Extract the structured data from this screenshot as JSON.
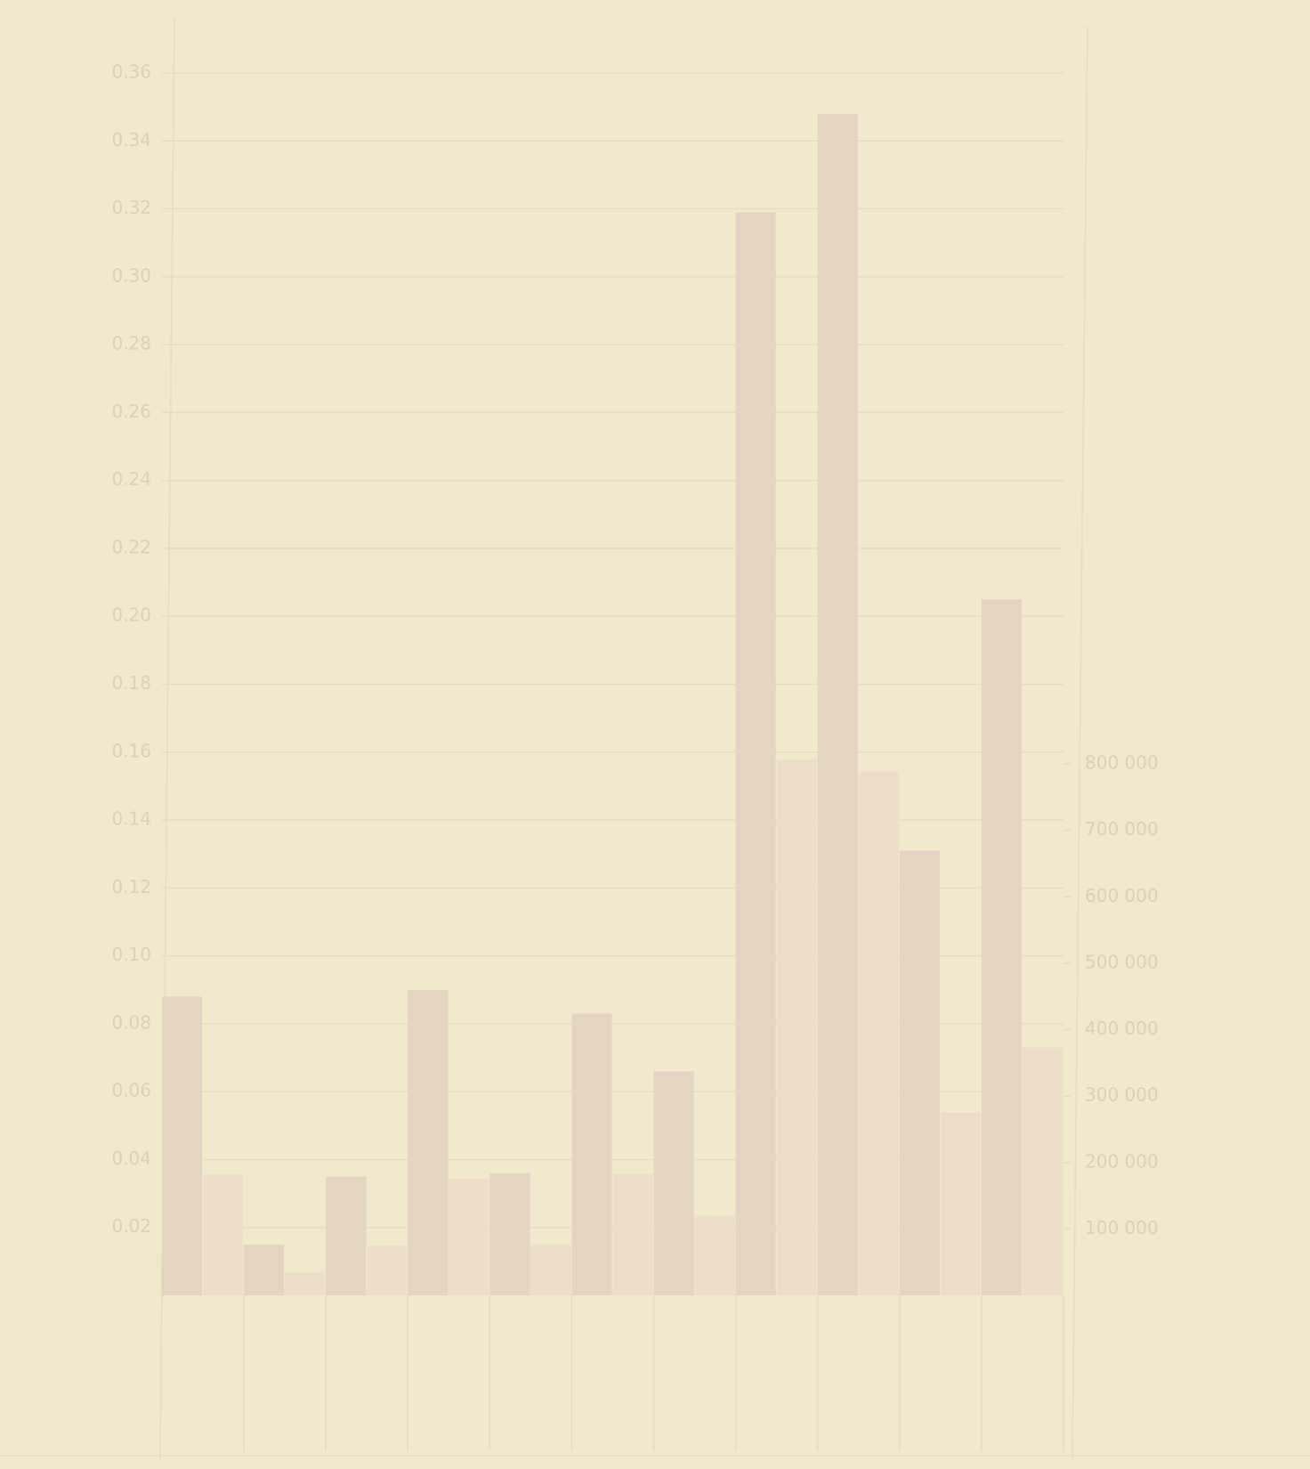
{
  "chart_data": {
    "type": "bar",
    "categories": [
      null,
      null,
      null,
      null,
      null,
      null,
      null,
      null,
      null,
      null,
      null
    ],
    "series": [
      {
        "name": null,
        "color": "#e2d5c2",
        "values": [
          0.088,
          0.015,
          0.035,
          0.09,
          0.036,
          0.083,
          0.066,
          0.319,
          0.348,
          0.131,
          0.205
        ]
      },
      {
        "name": null,
        "color": "#ebdfca",
        "axis": "y2",
        "values": [
          182000,
          35000,
          75000,
          176000,
          77000,
          183000,
          120000,
          807000,
          789000,
          275000,
          373000
        ]
      }
    ],
    "ylim": [
      0,
      0.36
    ],
    "yticks": [
      0.02,
      0.04,
      0.06,
      0.08,
      {
        "value": 0.1,
        "label": "0.10"
      },
      0.12,
      0.14,
      0.16,
      0.18,
      {
        "value": 0.2,
        "label": "0.20"
      },
      0.22,
      0.24,
      0.26,
      0.28,
      {
        "value": 0.3,
        "label": "0.30"
      },
      0.32,
      0.34,
      0.36
    ],
    "y2lim": [
      0,
      1840000
    ],
    "y2ticks": [
      {
        "value": 100000,
        "label": "100 000"
      },
      {
        "value": 200000,
        "label": "200 000"
      },
      {
        "value": 300000,
        "label": "300 000"
      },
      {
        "value": 400000,
        "label": "400 000"
      },
      {
        "value": 500000,
        "label": "500 000"
      },
      {
        "value": 600000,
        "label": "600 000"
      },
      {
        "value": 700000,
        "label": "700 000"
      },
      {
        "value": 800000,
        "label": "800 000"
      }
    ],
    "grid": true
  }
}
